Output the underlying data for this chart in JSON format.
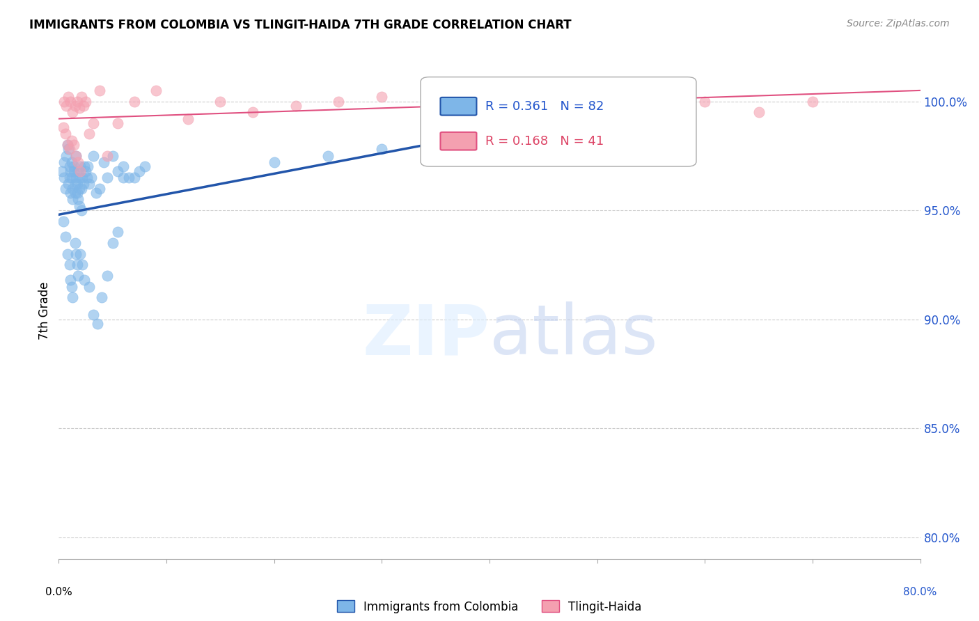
{
  "title": "IMMIGRANTS FROM COLOMBIA VS TLINGIT-HAIDA 7TH GRADE CORRELATION CHART",
  "source": "Source: ZipAtlas.com",
  "ylabel": "7th Grade",
  "y_ticks": [
    80.0,
    85.0,
    90.0,
    95.0,
    100.0
  ],
  "y_tick_labels": [
    "80.0%",
    "85.0%",
    "90.0%",
    "95.0%",
    "100.0%"
  ],
  "xmin": 0.0,
  "xmax": 80.0,
  "ymin": 79.0,
  "ymax": 101.8,
  "legend_blue_r": "0.361",
  "legend_blue_n": "82",
  "legend_pink_r": "0.168",
  "legend_pink_n": "41",
  "legend_label_blue": "Immigrants from Colombia",
  "legend_label_pink": "Tlingit-Haida",
  "blue_color": "#7EB6E8",
  "pink_color": "#F4A0B0",
  "trendline_blue": "#2255AA",
  "trendline_pink": "#E05080",
  "blue_points_x": [
    0.3,
    0.5,
    0.5,
    0.6,
    0.7,
    0.8,
    0.9,
    0.9,
    1.0,
    1.0,
    1.1,
    1.1,
    1.2,
    1.2,
    1.3,
    1.3,
    1.4,
    1.4,
    1.5,
    1.5,
    1.6,
    1.6,
    1.7,
    1.7,
    1.8,
    1.8,
    1.9,
    1.9,
    2.0,
    2.0,
    2.1,
    2.1,
    2.2,
    2.3,
    2.4,
    2.5,
    2.6,
    2.7,
    2.8,
    3.0,
    3.2,
    3.5,
    3.8,
    4.2,
    4.5,
    5.0,
    5.5,
    6.0,
    6.5,
    7.0,
    7.5,
    8.0,
    0.4,
    0.6,
    0.8,
    1.0,
    1.1,
    1.2,
    1.3,
    1.5,
    1.6,
    1.7,
    1.8,
    2.0,
    2.2,
    2.4,
    2.8,
    3.2,
    3.6,
    4.0,
    4.5,
    5.0,
    5.5,
    6.0,
    20.0,
    25.0,
    30.0,
    35.0,
    40.0,
    45.0,
    50.0,
    55.0
  ],
  "blue_points_y": [
    96.8,
    97.2,
    96.5,
    96.0,
    97.5,
    98.0,
    97.8,
    96.2,
    97.0,
    96.5,
    96.8,
    95.8,
    96.5,
    97.2,
    96.0,
    95.5,
    96.8,
    97.0,
    96.2,
    95.8,
    96.5,
    97.5,
    95.8,
    96.2,
    96.8,
    95.5,
    96.0,
    95.2,
    97.0,
    96.5,
    96.0,
    95.0,
    96.5,
    96.2,
    97.0,
    96.8,
    96.5,
    97.0,
    96.2,
    96.5,
    97.5,
    95.8,
    96.0,
    97.2,
    96.5,
    97.5,
    96.8,
    97.0,
    96.5,
    96.5,
    96.8,
    97.0,
    94.5,
    93.8,
    93.0,
    92.5,
    91.8,
    91.5,
    91.0,
    93.5,
    93.0,
    92.5,
    92.0,
    93.0,
    92.5,
    91.8,
    91.5,
    90.2,
    89.8,
    91.0,
    92.0,
    93.5,
    94.0,
    96.5,
    97.2,
    97.5,
    97.8,
    97.5,
    98.0,
    98.0,
    98.2,
    98.5
  ],
  "pink_points_x": [
    0.5,
    0.7,
    0.9,
    1.1,
    1.3,
    1.5,
    1.7,
    1.9,
    2.1,
    2.3,
    2.5,
    2.8,
    3.2,
    3.8,
    4.5,
    5.5,
    7.0,
    9.0,
    12.0,
    15.0,
    18.0,
    22.0,
    26.0,
    30.0,
    35.0,
    40.0,
    45.0,
    50.0,
    55.0,
    60.0,
    65.0,
    70.0,
    0.4,
    0.6,
    0.8,
    1.0,
    1.2,
    1.4,
    1.6,
    1.8,
    2.0
  ],
  "pink_points_y": [
    100.0,
    99.8,
    100.2,
    100.0,
    99.5,
    99.8,
    100.0,
    99.7,
    100.2,
    99.8,
    100.0,
    98.5,
    99.0,
    100.5,
    97.5,
    99.0,
    100.0,
    100.5,
    99.2,
    100.0,
    99.5,
    99.8,
    100.0,
    100.2,
    100.0,
    99.8,
    100.5,
    100.0,
    100.2,
    100.0,
    99.5,
    100.0,
    98.8,
    98.5,
    98.0,
    97.8,
    98.2,
    98.0,
    97.5,
    97.2,
    96.8
  ],
  "blue_trendline_x0": 0.0,
  "blue_trendline_y0": 94.8,
  "blue_trendline_x1": 50.0,
  "blue_trendline_y1": 99.5,
  "pink_trendline_x0": 0.0,
  "pink_trendline_y0": 99.2,
  "pink_trendline_x1": 80.0,
  "pink_trendline_y1": 100.5
}
